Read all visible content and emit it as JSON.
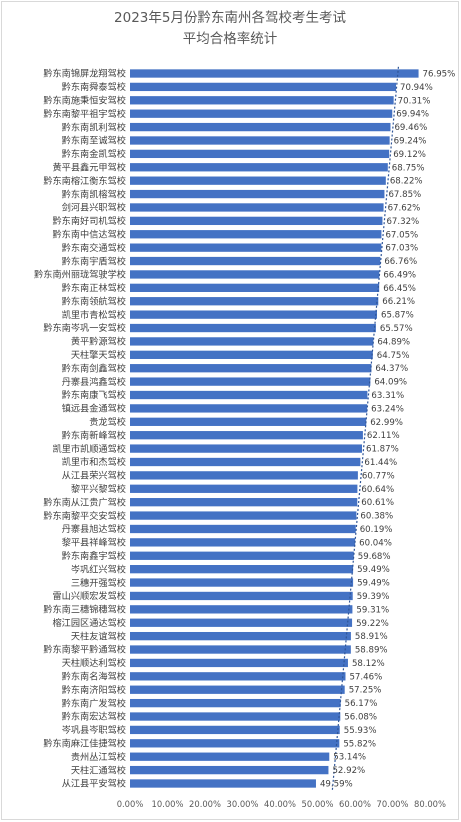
{
  "chart_data": {
    "type": "bar",
    "orientation": "horizontal",
    "title_lines": [
      "2023年5月份黔东南州各驾校考生考试",
      "平均合格率统计"
    ],
    "xlim": [
      0,
      80
    ],
    "tick_labels": [
      "0.00%",
      "10.00%",
      "20.00%",
      "30.00%",
      "40.00%",
      "50.00%",
      "60.00%",
      "70.00%",
      "80.00%"
    ],
    "bar_color": "#4472c4",
    "trendline_color": "#2f5597",
    "grid": false,
    "categories": [
      "黔东南锦屏龙翔驾校",
      "黔东南舜泰驾校",
      "黔东南施秉恒安驾校",
      "黔东南黎平祖宇驾校",
      "黔东南凯利驾校",
      "黔东南至诚驾校",
      "黔东南金凯驾校",
      "黄平县鑫元甲驾校",
      "黔东南榕江衡东驾校",
      "黔东南凯榕驾校",
      "剑河县兴职驾校",
      "黔东南好司机驾校",
      "黔东南中信达驾校",
      "黔东南交通驾校",
      "黔东南宇盾驾校",
      "黔东南州丽珑驾驶学校",
      "黔东南正林驾校",
      "黔东南领航驾校",
      "凯里市青松驾校",
      "黔东南岑巩一安驾校",
      "黄平黔源驾校",
      "天柱擎天驾校",
      "黔东南剑鑫驾校",
      "丹寨县鸿鑫驾校",
      "黔东南康飞驾校",
      "镇远县金通驾校",
      "贵龙驾校",
      "黔东南新峰驾校",
      "凯里市凯顺通驾校",
      "凯里市和杰驾校",
      "从江县荣兴驾校",
      "黎平兴黎驾校",
      "黔东南从江贵广驾校",
      "黔东南黎平交安驾校",
      "丹寨县旭达驾校",
      "黎平县祥峰驾校",
      "黔东南鑫宇驾校",
      "岑巩红兴驾校",
      "三穗开强驾校",
      "雷山兴顺宏发驾校",
      "黔东南三穗锦穗驾校",
      "榕江园区通达驾校",
      "天柱友谊驾校",
      "黔东南黎平黔通驾校",
      "天柱顺达利驾校",
      "黔东南名海驾校",
      "黔东南济阳驾校",
      "黔东南广发驾校",
      "黔东南宏达驾校",
      "岑巩县岑职驾校",
      "黔东南麻江佳捷驾校",
      "贵州丛江驾校",
      "天柱汇通驾校",
      "从江县平安驾校"
    ],
    "values": [
      76.95,
      70.94,
      70.31,
      69.94,
      69.46,
      69.24,
      69.12,
      68.75,
      68.22,
      67.85,
      67.62,
      67.32,
      67.05,
      67.03,
      66.76,
      66.49,
      66.45,
      66.21,
      65.87,
      65.57,
      64.89,
      64.75,
      64.37,
      64.09,
      63.31,
      63.24,
      62.99,
      62.11,
      61.87,
      61.44,
      60.77,
      60.64,
      60.61,
      60.38,
      60.19,
      60.04,
      59.68,
      59.49,
      59.49,
      59.39,
      59.31,
      59.22,
      58.91,
      58.89,
      58.12,
      57.46,
      57.25,
      56.17,
      56.08,
      55.93,
      55.82,
      53.14,
      52.92,
      49.59
    ],
    "value_labels": [
      "76.95%",
      "70.94%",
      "70.31%",
      "69.94%",
      "69.46%",
      "69.24%",
      "69.12%",
      "68.75%",
      "68.22%",
      "67.85%",
      "67.62%",
      "67.32%",
      "67.05%",
      "67.03%",
      "66.76%",
      "66.49%",
      "66.45%",
      "66.21%",
      "65.87%",
      "65.57%",
      "64.89%",
      "64.75%",
      "64.37%",
      "64.09%",
      "63.31%",
      "63.24%",
      "62.99%",
      "62.11%",
      "61.87%",
      "61.44%",
      "60.77%",
      "60.64%",
      "60.61%",
      "60.38%",
      "60.19%",
      "60.04%",
      "59.68%",
      "59.49%",
      "59.49%",
      "59.39%",
      "59.31%",
      "59.22%",
      "58.91%",
      "58.89%",
      "58.12%",
      "57.46%",
      "57.25%",
      "56.17%",
      "56.08%",
      "55.93%",
      "55.82%",
      "53.14%",
      "52.92%",
      "49.59%"
    ]
  }
}
